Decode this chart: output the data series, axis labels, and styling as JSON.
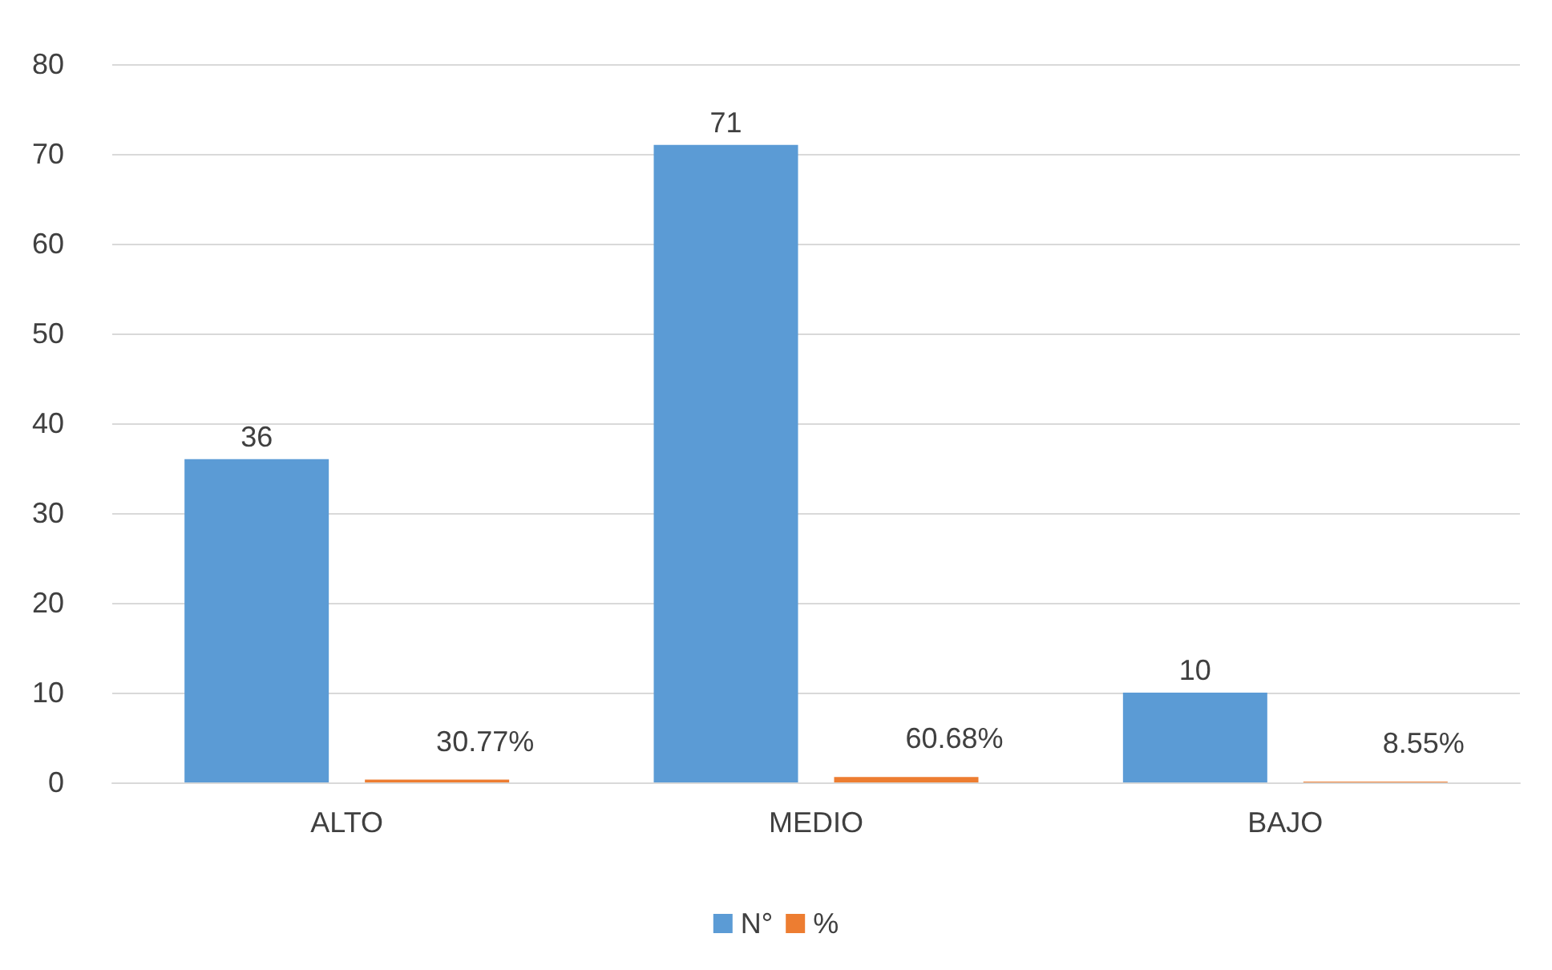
{
  "chart_data": {
    "type": "bar",
    "categories": [
      "ALTO",
      "MEDIO",
      "BAJO"
    ],
    "series": [
      {
        "name": "N°",
        "color": "#5b9bd5",
        "values": [
          36,
          71,
          10
        ],
        "value_labels": [
          "36",
          "71",
          "10"
        ]
      },
      {
        "name": "%",
        "color": "#ed7d31",
        "values": [
          0.3077,
          0.6068,
          0.0855
        ],
        "value_labels": [
          "30.77%",
          "60.68%",
          "8.55%"
        ]
      }
    ],
    "ylim": [
      0,
      80
    ],
    "yticks": [
      0,
      10,
      20,
      30,
      40,
      50,
      60,
      70,
      80
    ],
    "grid": "y",
    "legend": "bottom"
  }
}
